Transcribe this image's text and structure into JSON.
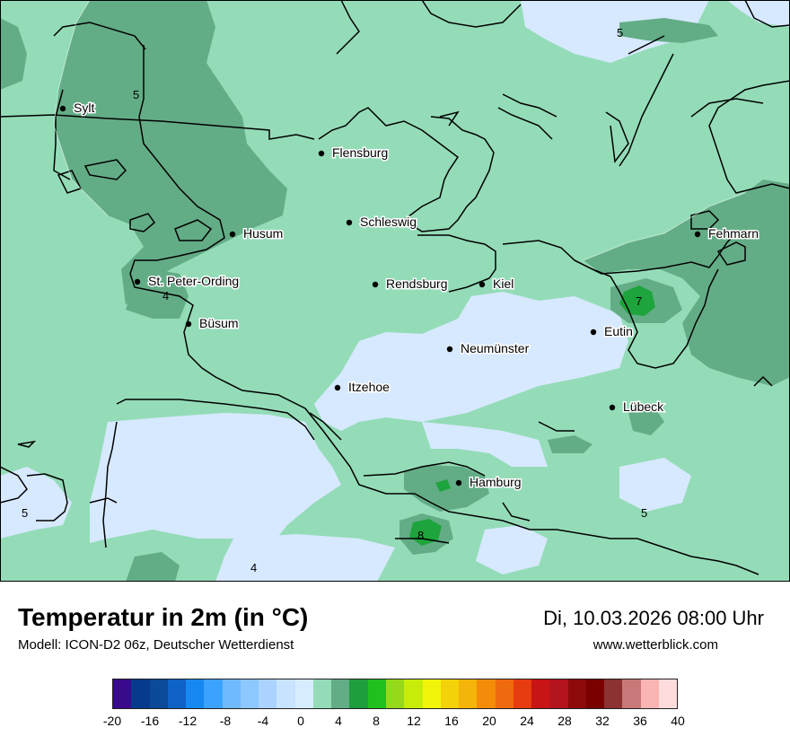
{
  "title": "Temperatur in 2m (in °C)",
  "subtitle": "Modell: ICON-D2 06z, Deutscher Wetterdienst",
  "datetime": "Di, 10.03.2026 08:00 Uhr",
  "website": "www.wetterblick.com",
  "colors": {
    "c0_2": "#d7e9ff",
    "c2_4": "#94dcb8",
    "c4_6": "#63ad86",
    "c6_8": "#1ea43c"
  },
  "cities": [
    {
      "name": "Sylt"
    },
    {
      "name": "Flensburg"
    },
    {
      "name": "Schleswig"
    },
    {
      "name": "Husum"
    },
    {
      "name": "St. Peter-Ording"
    },
    {
      "name": "Rendsburg"
    },
    {
      "name": "Kiel"
    },
    {
      "name": "Fehmarn"
    },
    {
      "name": "Büsum"
    },
    {
      "name": "Neumünster"
    },
    {
      "name": "Eutin"
    },
    {
      "name": "Itzehoe"
    },
    {
      "name": "Lübeck"
    },
    {
      "name": "Hamburg"
    }
  ],
  "contour_labels": [
    "5",
    "5",
    "4",
    "7",
    "8",
    "5",
    "5",
    "4"
  ],
  "scale": {
    "colors": [
      "#3a0a8c",
      "#053a8c",
      "#0a4a96",
      "#0f63c6",
      "#1688f0",
      "#3ba2ff",
      "#6fb9ff",
      "#8cc8ff",
      "#aad3ff",
      "#c8e3ff",
      "#d7ecff",
      "#94dcb8",
      "#63ad86",
      "#1e9e3c",
      "#20c01e",
      "#96d81a",
      "#c8ec0a",
      "#f0f50a",
      "#f4d20a",
      "#f5b409",
      "#f48c0a",
      "#ef690f",
      "#e63c0f",
      "#c81414",
      "#b4141e",
      "#8c0a0a",
      "#7a0000",
      "#8c3232",
      "#c87878",
      "#fab4b4",
      "#ffdcdc"
    ],
    "labels": [
      "-20",
      "-16",
      "-12",
      "-8",
      "-4",
      "0",
      "4",
      "8",
      "12",
      "16",
      "20",
      "24",
      "28",
      "32",
      "36",
      "40"
    ]
  }
}
